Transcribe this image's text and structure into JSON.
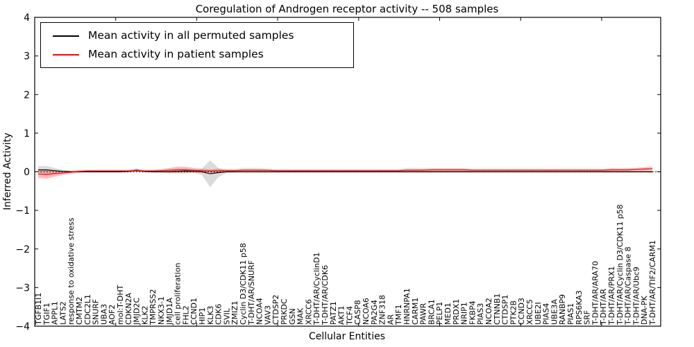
{
  "chart_data": {
    "type": "line",
    "title": "Coregulation of Androgen receptor activity -- 508 samples",
    "xlabel": "Cellular Entities",
    "ylabel": "Inferred Activity",
    "ylim": [
      -4,
      4
    ],
    "yticks": [
      -4,
      -3,
      -2,
      -1,
      0,
      1,
      2,
      3,
      4
    ],
    "grid": false,
    "zero_line": true,
    "legend_position": "upper left",
    "colors": {
      "permuted_line": "#000000",
      "permuted_band": "#aaaaaa",
      "patient_line": "#ff0000",
      "patient_band": "#ff5555",
      "zero_line": "#000000"
    },
    "categories": [
      "TGFB1I1",
      "TGIF1",
      "APPL1",
      "LATS2",
      "response to oxidative stress",
      "CMTM2",
      "CDC2L1",
      "SNURF",
      "UBA3",
      "AOF2",
      "mol:T-DHT",
      "CDKN2A",
      "JMJD2C",
      "KLK2",
      "TMPRSS2",
      "NKX3-1",
      "JMJD1A",
      "cell proliferation",
      "FHL2",
      "CCND1",
      "HIP1",
      "KLK3",
      "CDK6",
      "SVIL",
      "ZMIZ1",
      "Cyclin D3/CDK11 p58",
      "T-DHT/AR/SNURF",
      "NCOA4",
      "VAV3",
      "CTDSP2",
      "PRKDC",
      "GSN",
      "MAK",
      "XRCC6",
      "T-DHT/AR/CyclinD1",
      "T-DHT/AR/CDK6",
      "PATZ1",
      "AKT1",
      "TCF4",
      "CASP8",
      "NCOA6",
      "PA2G4",
      "ZNF318",
      "AR",
      "TMF1",
      "HNRNPA1",
      "CARM1",
      "PAWR",
      "BRCA1",
      "PELP1",
      "MED1",
      "PRDX1",
      "NRIP1",
      "FKBP4",
      "PIAS3",
      "NCOA2",
      "CTNNB1",
      "CTDSP1",
      "PTK2B",
      "CCND3",
      "XRCC5",
      "UBE2I",
      "PIAS4",
      "UBE3A",
      "RANBP9",
      "PIAS1",
      "RPS6KA3",
      "SRF",
      "T-DHT/AR/ARA70",
      "T-DHT/AR",
      "T-DHT/AR/PRX1",
      "T-DHT/AR/Cyclin D3/CDK11 p58",
      "T-DHT/AR/Caspase 8",
      "T-DHT/AR/Ubc9",
      "DNA-PK",
      "T-DHT/AR/TIF2/CARM1"
    ],
    "series": [
      {
        "name": "Mean activity in all permuted samples",
        "color": "#000000",
        "band_color": "#999999",
        "band_opacity": 0.35,
        "values": [
          0.05,
          0.05,
          0.03,
          0.01,
          0,
          0,
          0,
          0,
          0,
          0,
          0,
          0.01,
          0.04,
          0.01,
          0,
          0,
          0,
          0.01,
          0.02,
          0.01,
          0,
          -0.05,
          -0.02,
          0,
          0,
          0,
          0,
          0,
          0,
          0,
          0,
          0,
          0,
          0,
          0,
          0,
          0,
          0,
          0,
          0,
          0,
          0,
          0,
          0,
          0,
          0,
          0,
          0,
          0,
          0,
          0,
          0,
          0,
          0,
          0,
          0,
          0,
          0,
          0,
          0,
          0,
          0,
          0,
          0,
          0,
          0,
          0,
          0,
          0,
          0,
          0,
          0,
          0,
          0,
          0,
          0
        ],
        "band": [
          0.09,
          0.1,
          0.07,
          0.04,
          0.02,
          0.02,
          0.02,
          0.02,
          0.02,
          0.02,
          0.02,
          0.03,
          0.05,
          0.03,
          0.02,
          0.02,
          0.03,
          0.05,
          0.06,
          0.04,
          0.08,
          0.35,
          0.12,
          0.03,
          0.02,
          0.02,
          0.02,
          0.02,
          0.02,
          0.02,
          0.02,
          0.02,
          0.02,
          0.02,
          0.02,
          0.02,
          0.02,
          0.02,
          0.02,
          0.02,
          0.02,
          0.02,
          0.02,
          0.02,
          0.02,
          0.02,
          0.02,
          0.02,
          0.02,
          0.02,
          0.02,
          0.02,
          0.02,
          0.02,
          0.02,
          0.02,
          0.02,
          0.02,
          0.02,
          0.02,
          0.02,
          0.02,
          0.02,
          0.02,
          0.02,
          0.02,
          0.02,
          0.02,
          0.02,
          0.02,
          0.02,
          0.02,
          0.02,
          0.02,
          0.02,
          0.03
        ]
      },
      {
        "name": "Mean activity in patient samples",
        "color": "#ff0000",
        "band_color": "#ff4444",
        "band_opacity": 0.35,
        "values": [
          -0.06,
          -0.07,
          -0.05,
          -0.03,
          -0.01,
          0.01,
          0.02,
          0.02,
          0.02,
          0.02,
          0.02,
          0.02,
          0.03,
          0.02,
          0.02,
          0.03,
          0.04,
          0.05,
          0.05,
          0.04,
          0.03,
          0.02,
          0.03,
          0.03,
          0.03,
          0.04,
          0.04,
          0.04,
          0.04,
          0.03,
          0.03,
          0.03,
          0.03,
          0.03,
          0.03,
          0.03,
          0.03,
          0.03,
          0.03,
          0.03,
          0.03,
          0.03,
          0.03,
          0.03,
          0.03,
          0.04,
          0.04,
          0.04,
          0.05,
          0.05,
          0.05,
          0.05,
          0.05,
          0.04,
          0.04,
          0.04,
          0.04,
          0.04,
          0.04,
          0.04,
          0.04,
          0.04,
          0.04,
          0.04,
          0.04,
          0.04,
          0.04,
          0.04,
          0.04,
          0.04,
          0.05,
          0.05,
          0.05,
          0.06,
          0.07,
          0.08
        ],
        "band": [
          0.1,
          0.11,
          0.08,
          0.05,
          0.04,
          0.03,
          0.03,
          0.03,
          0.03,
          0.03,
          0.03,
          0.03,
          0.03,
          0.03,
          0.03,
          0.04,
          0.06,
          0.08,
          0.08,
          0.06,
          0.05,
          0.04,
          0.05,
          0.04,
          0.04,
          0.04,
          0.04,
          0.04,
          0.03,
          0.03,
          0.03,
          0.03,
          0.03,
          0.03,
          0.03,
          0.03,
          0.03,
          0.03,
          0.03,
          0.03,
          0.03,
          0.03,
          0.03,
          0.03,
          0.03,
          0.04,
          0.04,
          0.04,
          0.04,
          0.04,
          0.04,
          0.04,
          0.04,
          0.03,
          0.03,
          0.03,
          0.03,
          0.03,
          0.03,
          0.03,
          0.03,
          0.03,
          0.03,
          0.03,
          0.03,
          0.03,
          0.03,
          0.03,
          0.03,
          0.03,
          0.04,
          0.04,
          0.04,
          0.04,
          0.05,
          0.05
        ]
      }
    ]
  }
}
